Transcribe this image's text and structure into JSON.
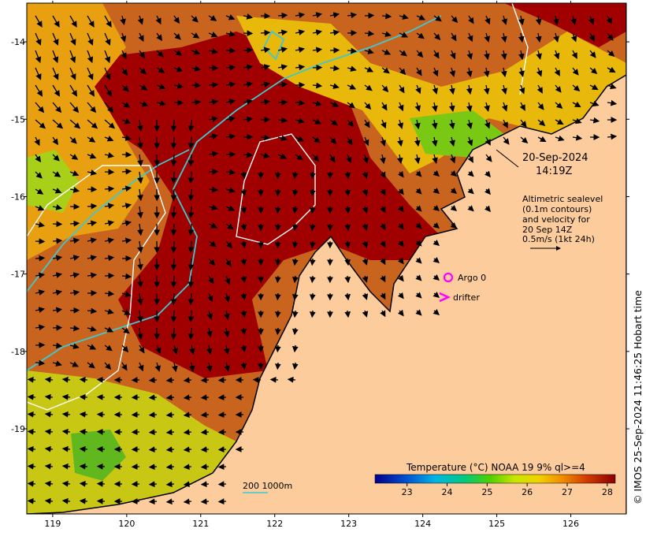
{
  "map": {
    "lon_ticks": [
      "119",
      "120",
      "121",
      "122",
      "123",
      "124",
      "125",
      "126"
    ],
    "lat_ticks": [
      "-14",
      "-15",
      "-16",
      "-17",
      "-18",
      "-19"
    ],
    "lon_range": [
      118.65,
      126.75
    ],
    "lat_range": [
      -20.1,
      -13.5
    ]
  },
  "annotation": {
    "date": "20-Sep-2024",
    "time": "14:19Z",
    "legend_lines": [
      "Altimetric sealevel",
      "(0.1m contours)",
      "and velocity for",
      "20 Sep 14Z",
      "0.5m/s (1kt 24h)"
    ]
  },
  "markers": {
    "argo_label": "Argo 0",
    "drifter_label": "drifter",
    "argo_color": "#ff00ff",
    "drifter_color": "#ff00ff"
  },
  "bathymetry_legend": {
    "label": "200  1000m",
    "color": "#40c8d0"
  },
  "colorbar": {
    "title": "Temperature (°C) NOAA 19 9% ql>=4",
    "ticks": [
      "23",
      "24",
      "25",
      "26",
      "27",
      "28"
    ],
    "range": [
      22.2,
      28.2
    ]
  },
  "credit": "© IMOS 25-Sep-2024 11:46:25 Hobart time",
  "colors": {
    "land": "#fdcc9c",
    "warm": "#a00000",
    "mid": "#c8641e",
    "cool": "#e8b80a",
    "cooler": "#8ccc20",
    "isobath": "#40c8d0"
  }
}
